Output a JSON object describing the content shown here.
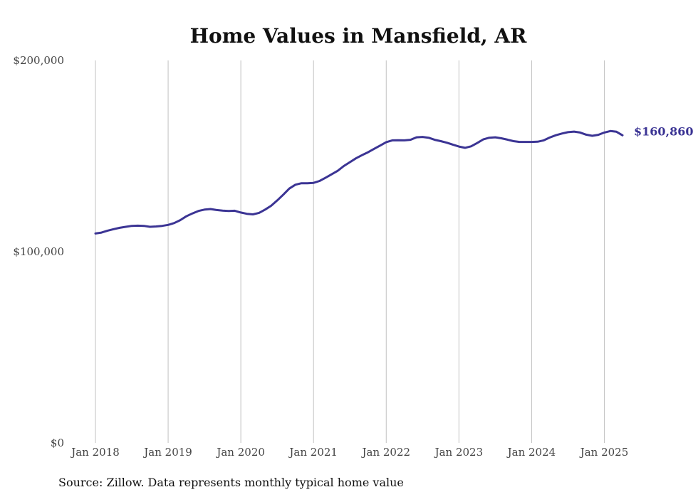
{
  "chart_data": {
    "type": "line",
    "title": "Home Values in Mansfield, AR",
    "source": "Source: Zillow. Data represents monthly typical home value",
    "ylim": [
      0,
      200000
    ],
    "yticks": [
      {
        "value": 0,
        "label": "$0"
      },
      {
        "value": 100000,
        "label": "$100,000"
      },
      {
        "value": 200000,
        "label": "$200,000"
      }
    ],
    "xlim": [
      "2018-01",
      "2025-04"
    ],
    "xticks": [
      {
        "date": "2018-01",
        "label": "Jan 2018"
      },
      {
        "date": "2019-01",
        "label": "Jan 2019"
      },
      {
        "date": "2020-01",
        "label": "Jan 2020"
      },
      {
        "date": "2021-01",
        "label": "Jan 2021"
      },
      {
        "date": "2022-01",
        "label": "Jan 2022"
      },
      {
        "date": "2023-01",
        "label": "Jan 2023"
      },
      {
        "date": "2024-01",
        "label": "Jan 2024"
      },
      {
        "date": "2025-01",
        "label": "Jan 2025"
      }
    ],
    "grid": "vertical",
    "line_color": "#3b3494",
    "end_label": "$160,860",
    "x": [
      "2018-01",
      "2018-02",
      "2018-03",
      "2018-04",
      "2018-05",
      "2018-06",
      "2018-07",
      "2018-08",
      "2018-09",
      "2018-10",
      "2018-11",
      "2018-12",
      "2019-01",
      "2019-02",
      "2019-03",
      "2019-04",
      "2019-05",
      "2019-06",
      "2019-07",
      "2019-08",
      "2019-09",
      "2019-10",
      "2019-11",
      "2019-12",
      "2020-01",
      "2020-02",
      "2020-03",
      "2020-04",
      "2020-05",
      "2020-06",
      "2020-07",
      "2020-08",
      "2020-09",
      "2020-10",
      "2020-11",
      "2020-12",
      "2021-01",
      "2021-02",
      "2021-03",
      "2021-04",
      "2021-05",
      "2021-06",
      "2021-07",
      "2021-08",
      "2021-09",
      "2021-10",
      "2021-11",
      "2021-12",
      "2022-01",
      "2022-02",
      "2022-03",
      "2022-04",
      "2022-05",
      "2022-06",
      "2022-07",
      "2022-08",
      "2022-09",
      "2022-10",
      "2022-11",
      "2022-12",
      "2023-01",
      "2023-02",
      "2023-03",
      "2023-04",
      "2023-05",
      "2023-06",
      "2023-07",
      "2023-08",
      "2023-09",
      "2023-10",
      "2023-11",
      "2023-12",
      "2024-01",
      "2024-02",
      "2024-03",
      "2024-04",
      "2024-05",
      "2024-06",
      "2024-07",
      "2024-08",
      "2024-09",
      "2024-10",
      "2024-11",
      "2024-12",
      "2025-01",
      "2025-02",
      "2025-03",
      "2025-04"
    ],
    "values": [
      109500,
      110000,
      111000,
      111800,
      112500,
      113000,
      113500,
      113600,
      113500,
      113000,
      113200,
      113500,
      114000,
      115000,
      116500,
      118500,
      120000,
      121300,
      122000,
      122300,
      121800,
      121500,
      121300,
      121400,
      120500,
      119800,
      119500,
      120300,
      122000,
      124000,
      126800,
      129800,
      133000,
      135000,
      135800,
      135800,
      136000,
      137000,
      138700,
      140500,
      142300,
      144800,
      146800,
      148800,
      150500,
      152000,
      153800,
      155500,
      157300,
      158200,
      158300,
      158200,
      158500,
      159800,
      160000,
      159600,
      158500,
      157800,
      157000,
      156000,
      155000,
      154300,
      155100,
      156800,
      158700,
      159600,
      159800,
      159300,
      158600,
      157800,
      157400,
      157400,
      157400,
      157500,
      158200,
      159700,
      160900,
      161800,
      162500,
      162800,
      162300,
      161200,
      160600,
      161100,
      162300,
      163100,
      162700,
      160860
    ]
  }
}
